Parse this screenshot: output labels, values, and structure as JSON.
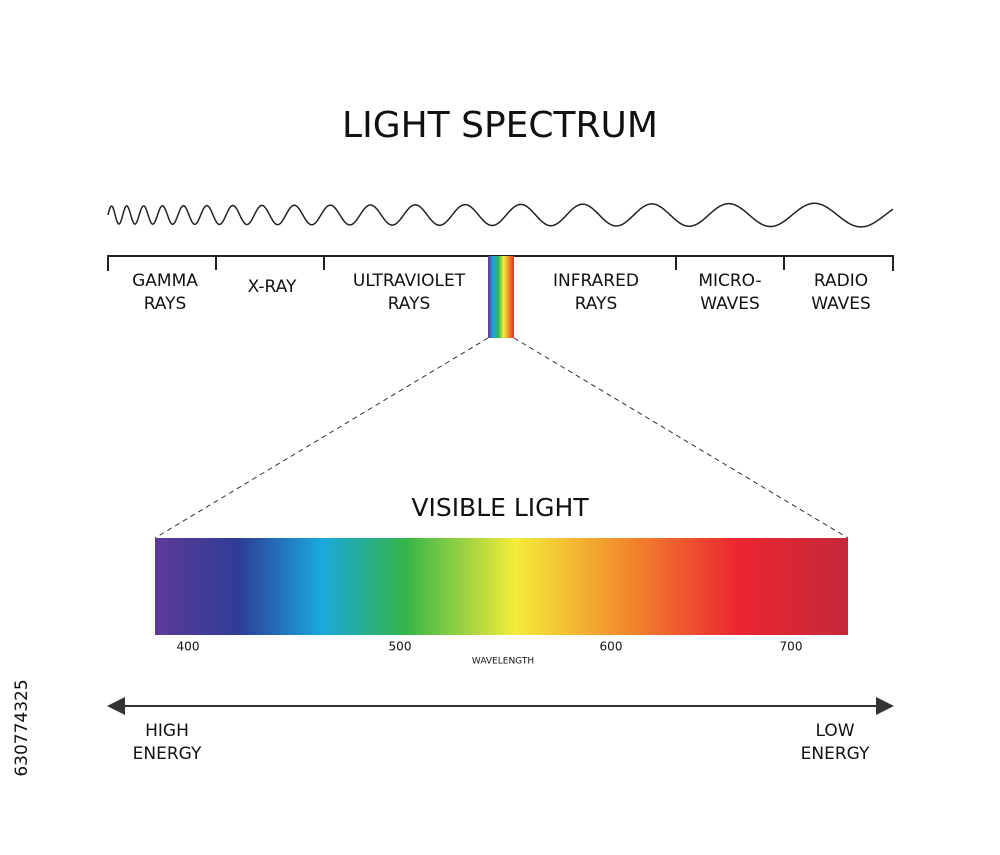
{
  "title": "LIGHT SPECTRUM",
  "bands": [
    {
      "lines": [
        "GAMMA",
        "RAYS"
      ]
    },
    {
      "lines": [
        "X-RAY"
      ]
    },
    {
      "lines": [
        "ULTRAVIOLET",
        "RAYS"
      ]
    },
    {
      "lines": [
        "INFRARED",
        "RAYS"
      ]
    },
    {
      "lines": [
        "MICRO-",
        "WAVES"
      ]
    },
    {
      "lines": [
        "RADIO",
        "WAVES"
      ]
    }
  ],
  "visible_light": {
    "title": "VISIBLE LIGHT",
    "ticks": [
      400,
      500,
      600,
      700
    ],
    "axis_label": "WAVELENGTH"
  },
  "energy": {
    "left": [
      "HIGH",
      "ENERGY"
    ],
    "right": [
      "LOW",
      "ENERGY"
    ]
  },
  "image_id": "630774325"
}
